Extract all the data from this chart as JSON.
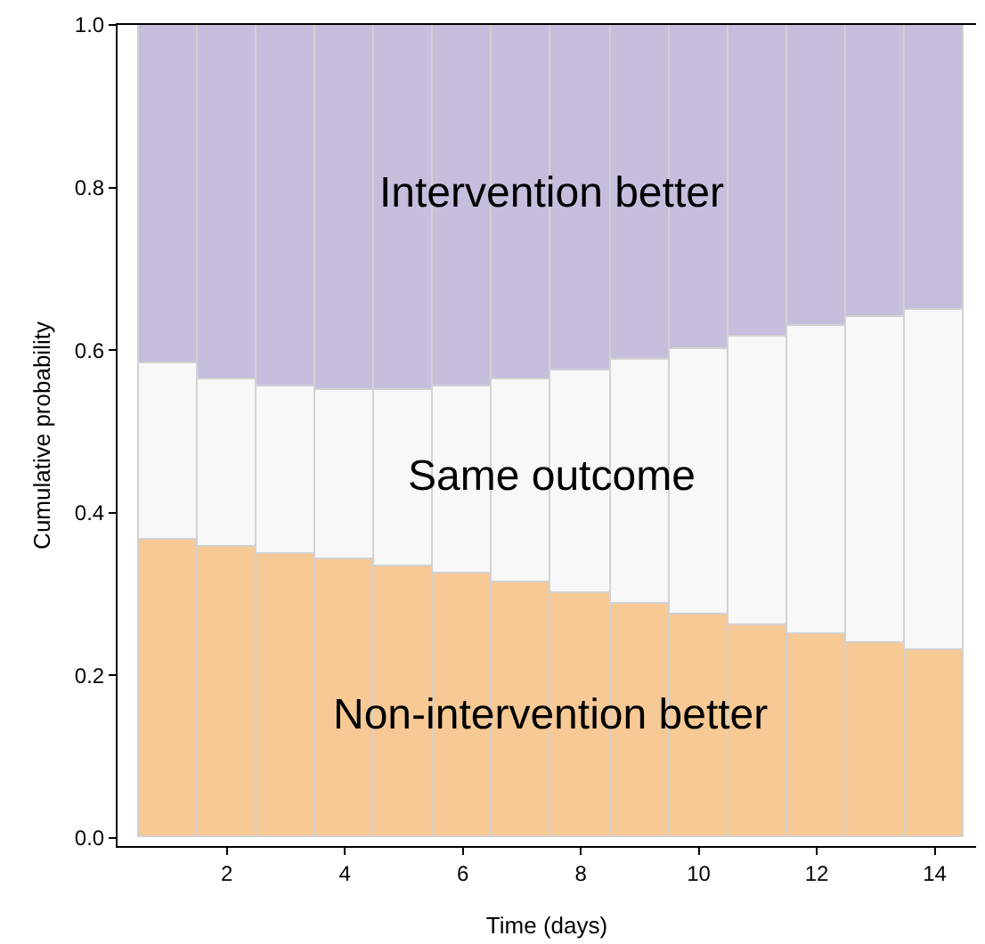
{
  "chart_data": {
    "type": "bar",
    "stacked": true,
    "xlabel": "Time (days)",
    "ylabel": "Cumulative probability",
    "x": [
      1,
      2,
      3,
      4,
      5,
      6,
      7,
      8,
      9,
      10,
      11,
      12,
      13,
      14
    ],
    "series": [
      {
        "name": "Non-intervention better",
        "color": "#f7c994",
        "values": [
          0.367,
          0.358,
          0.35,
          0.343,
          0.335,
          0.326,
          0.315,
          0.302,
          0.289,
          0.275,
          0.262,
          0.25,
          0.24,
          0.232
        ]
      },
      {
        "name": "Same outcome",
        "color": "#f8f8f8",
        "values": [
          0.216,
          0.205,
          0.205,
          0.207,
          0.215,
          0.229,
          0.248,
          0.272,
          0.299,
          0.327,
          0.354,
          0.379,
          0.4,
          0.417
        ]
      },
      {
        "name": "Intervention better",
        "color": "#c5bedd",
        "values": [
          0.417,
          0.437,
          0.445,
          0.45,
          0.45,
          0.445,
          0.437,
          0.426,
          0.412,
          0.398,
          0.384,
          0.371,
          0.36,
          0.351
        ]
      }
    ],
    "xlim": [
      0.15,
      14.7
    ],
    "xticks": [
      2,
      4,
      6,
      8,
      10,
      12,
      14
    ],
    "ylim": [
      -0.01,
      1.0
    ],
    "yticks": [
      {
        "value": 0,
        "label": "0.0"
      },
      {
        "value": 0.2,
        "label": "0.2"
      },
      {
        "value": 0.4,
        "label": "0.4"
      },
      {
        "value": 0.6,
        "label": "0.6"
      },
      {
        "value": 0.8,
        "label": "0.8"
      },
      {
        "value": 1.0,
        "label": "1.0"
      }
    ],
    "legend": false
  }
}
